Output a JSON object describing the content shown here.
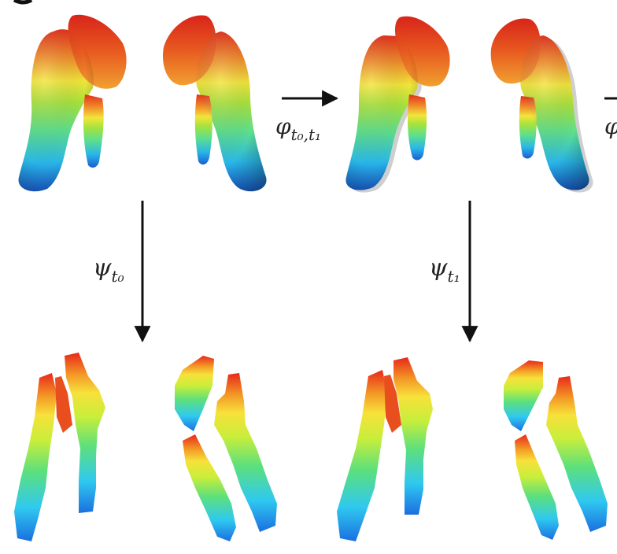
{
  "diagram": {
    "arrows": [
      {
        "id": "phi",
        "symbol": "φ",
        "subscript": "t₀,t₁"
      },
      {
        "id": "psi0",
        "symbol": "ψ",
        "subscript": "t₀"
      },
      {
        "id": "psi1",
        "symbol": "ψ",
        "subscript": "t₁"
      },
      {
        "id": "phi-next",
        "symbol": "φ",
        "subscript": ""
      }
    ],
    "colormap": [
      "#1a5fd0",
      "#29b6e8",
      "#5fe08a",
      "#f2e53a",
      "#f0902a",
      "#e4301c"
    ],
    "panels": [
      {
        "id": "surface-t0",
        "kind": "3d-surface"
      },
      {
        "id": "surface-t1",
        "kind": "3d-surface"
      },
      {
        "id": "flat-t0",
        "kind": "flattened-map"
      },
      {
        "id": "flat-t1",
        "kind": "flattened-map"
      }
    ]
  }
}
